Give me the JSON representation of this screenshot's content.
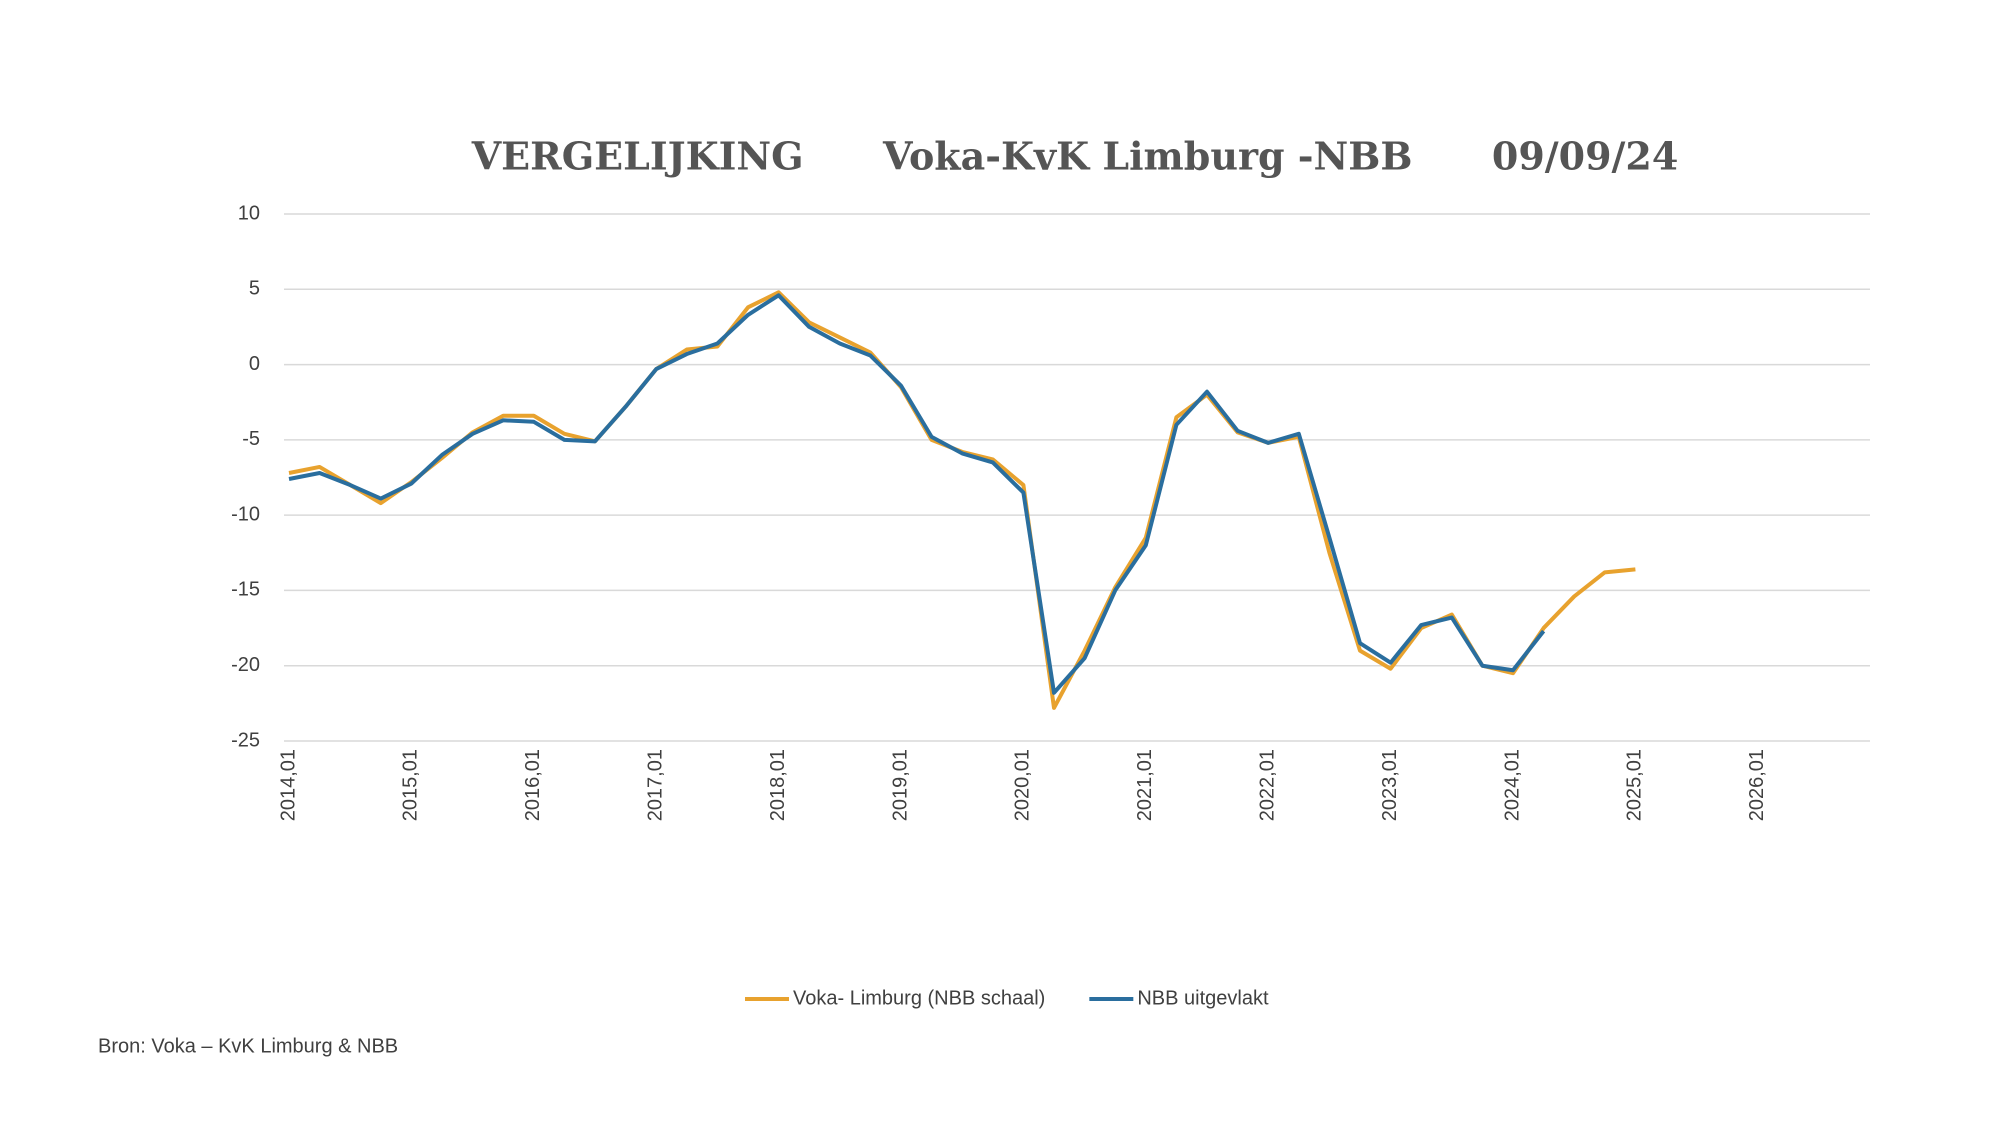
{
  "chart_data": {
    "type": "line",
    "title": "VERGELIJKING      Voka-KvK Limburg -NBB      09/09/24",
    "source": "Bron: Voka – KvK Limburg & NBB",
    "categories": [
      "2014,01",
      null,
      null,
      null,
      "2015,01",
      null,
      null,
      null,
      "2016,01",
      null,
      null,
      null,
      "2017,01",
      null,
      null,
      null,
      "2018,01",
      null,
      null,
      null,
      "2019,01",
      null,
      null,
      null,
      "2020,01",
      null,
      null,
      null,
      "2021,01",
      null,
      null,
      null,
      "2022,01",
      null,
      null,
      null,
      "2023,01",
      null,
      null,
      null,
      "2024,01",
      null,
      null,
      null,
      "2025,01",
      null,
      null,
      null,
      "2026,01",
      null,
      null,
      null
    ],
    "series": [
      {
        "name": "Voka- Limburg (NBB schaal)",
        "color": "#e8a22e",
        "values": [
          -7.2,
          -6.8,
          -8.0,
          -9.2,
          -7.8,
          -6.2,
          -4.5,
          -3.4,
          -3.4,
          -4.6,
          -5.1,
          -2.8,
          -0.3,
          1.0,
          1.2,
          3.8,
          4.8,
          2.8,
          1.8,
          0.8,
          -1.5,
          -5.0,
          -5.8,
          -6.3,
          -8.0,
          -22.8,
          -19.0,
          -14.8,
          -11.5,
          -3.5,
          -2.0,
          -4.5,
          -5.2,
          -4.8,
          -12.5,
          -19.0,
          -20.2,
          -17.5,
          -16.6,
          -20.0,
          -20.5,
          -17.5,
          -15.4,
          -13.8,
          -13.6,
          null,
          null,
          null,
          null,
          null,
          null,
          null
        ]
      },
      {
        "name": "NBB  uitgevlakt",
        "color": "#2a6e9e",
        "values": [
          -7.6,
          -7.2,
          -8.0,
          -8.9,
          -7.9,
          -6.0,
          -4.6,
          -3.7,
          -3.8,
          -5.0,
          -5.1,
          -2.8,
          -0.3,
          0.7,
          1.4,
          3.3,
          4.6,
          2.5,
          1.4,
          0.6,
          -1.4,
          -4.8,
          -5.9,
          -6.5,
          -8.5,
          -21.8,
          -19.5,
          -15.0,
          -12.0,
          -4.0,
          -1.8,
          -4.4,
          -5.2,
          -4.6,
          -11.5,
          -18.5,
          -19.8,
          -17.3,
          -16.8,
          -20.0,
          -20.3,
          -17.7,
          null,
          null,
          null,
          null,
          null,
          null,
          null,
          null,
          null,
          null
        ]
      }
    ],
    "ylim": [
      -25,
      10
    ],
    "yticks": [
      -25,
      -20,
      -15,
      -10,
      -5,
      0,
      5,
      10
    ],
    "grid": true,
    "legend": "bottom"
  }
}
